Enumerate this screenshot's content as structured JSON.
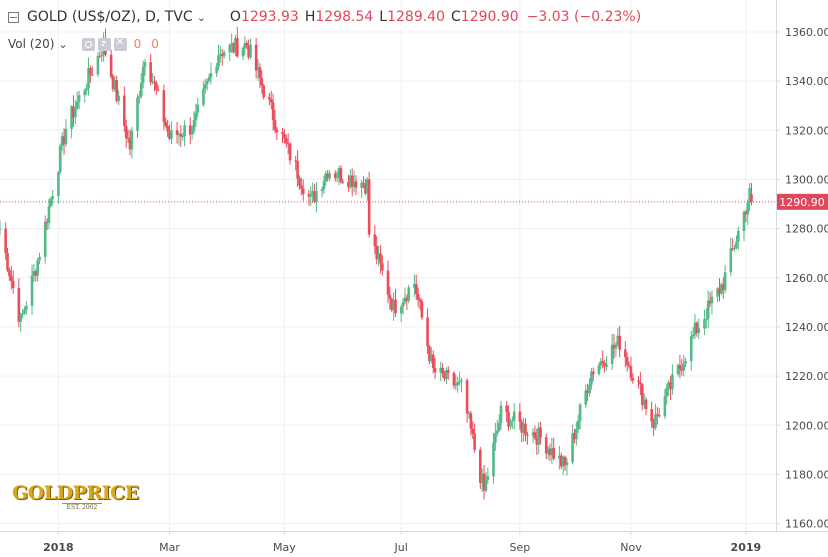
{
  "legend": {
    "title": "GOLD (US$/OZ), D, TVC",
    "open_label": "O",
    "open": "1293.93",
    "high_label": "H",
    "high": "1298.54",
    "low_label": "L",
    "low": "1289.40",
    "close_label": "C",
    "close": "1290.90",
    "change": "−3.03 (−0.23%)"
  },
  "volume": {
    "label": "Vol (20)",
    "value1": "0",
    "value2": "0"
  },
  "price_tag": "1290.90",
  "logo": {
    "text": "GOLDPRICE",
    "tagline": "EST. 2002"
  },
  "colors": {
    "up": "#53b987",
    "down": "#eb4d5c",
    "last_price": "#e0475a"
  },
  "chart_data": {
    "type": "candlestick",
    "symbol": "GOLD (US$/OZ)",
    "interval": "D",
    "y_ticks": [
      1160,
      1180,
      1200,
      1220,
      1240,
      1260,
      1280,
      1300,
      1320,
      1340,
      1360
    ],
    "ylim": [
      1157,
      1373
    ],
    "x_ticks": [
      {
        "label": "2018",
        "date": "2018-01-01"
      },
      {
        "label": "Mar",
        "date": "2018-03-01"
      },
      {
        "label": "May",
        "date": "2018-05-01"
      },
      {
        "label": "Jul",
        "date": "2018-07-02"
      },
      {
        "label": "Sep",
        "date": "2018-09-03"
      },
      {
        "label": "Nov",
        "date": "2018-11-01"
      },
      {
        "label": "2019",
        "date": "2019-01-01"
      }
    ],
    "xlim": [
      "2017-12-01",
      "2019-01-17"
    ],
    "last_price": 1290.9,
    "grid": true,
    "daily_close_path": [
      {
        "date": "2017-12-01",
        "close": 1280
      },
      {
        "date": "2017-12-12",
        "close": 1242
      },
      {
        "date": "2017-12-21",
        "close": 1267
      },
      {
        "date": "2018-01-05",
        "close": 1321
      },
      {
        "date": "2018-01-25",
        "close": 1355
      },
      {
        "date": "2018-02-08",
        "close": 1313
      },
      {
        "date": "2018-02-16",
        "close": 1351
      },
      {
        "date": "2018-03-01",
        "close": 1317
      },
      {
        "date": "2018-03-14",
        "close": 1322
      },
      {
        "date": "2018-03-27",
        "close": 1352
      },
      {
        "date": "2018-04-11",
        "close": 1355
      },
      {
        "date": "2018-04-27",
        "close": 1322
      },
      {
        "date": "2018-05-15",
        "close": 1291
      },
      {
        "date": "2018-05-24",
        "close": 1304
      },
      {
        "date": "2018-06-14",
        "close": 1298
      },
      {
        "date": "2018-06-15",
        "close": 1278
      },
      {
        "date": "2018-06-28",
        "close": 1248
      },
      {
        "date": "2018-07-09",
        "close": 1258
      },
      {
        "date": "2018-07-19",
        "close": 1222
      },
      {
        "date": "2018-08-03",
        "close": 1215
      },
      {
        "date": "2018-08-15",
        "close": 1173
      },
      {
        "date": "2018-08-24",
        "close": 1205
      },
      {
        "date": "2018-09-14",
        "close": 1195
      },
      {
        "date": "2018-09-27",
        "close": 1183
      },
      {
        "date": "2018-10-11",
        "close": 1222
      },
      {
        "date": "2018-10-26",
        "close": 1234
      },
      {
        "date": "2018-11-13",
        "close": 1201
      },
      {
        "date": "2018-11-26",
        "close": 1222
      },
      {
        "date": "2018-12-05",
        "close": 1238
      },
      {
        "date": "2018-12-20",
        "close": 1258
      },
      {
        "date": "2019-01-03",
        "close": 1294
      },
      {
        "date": "2019-01-04",
        "close": 1290.9
      }
    ]
  }
}
